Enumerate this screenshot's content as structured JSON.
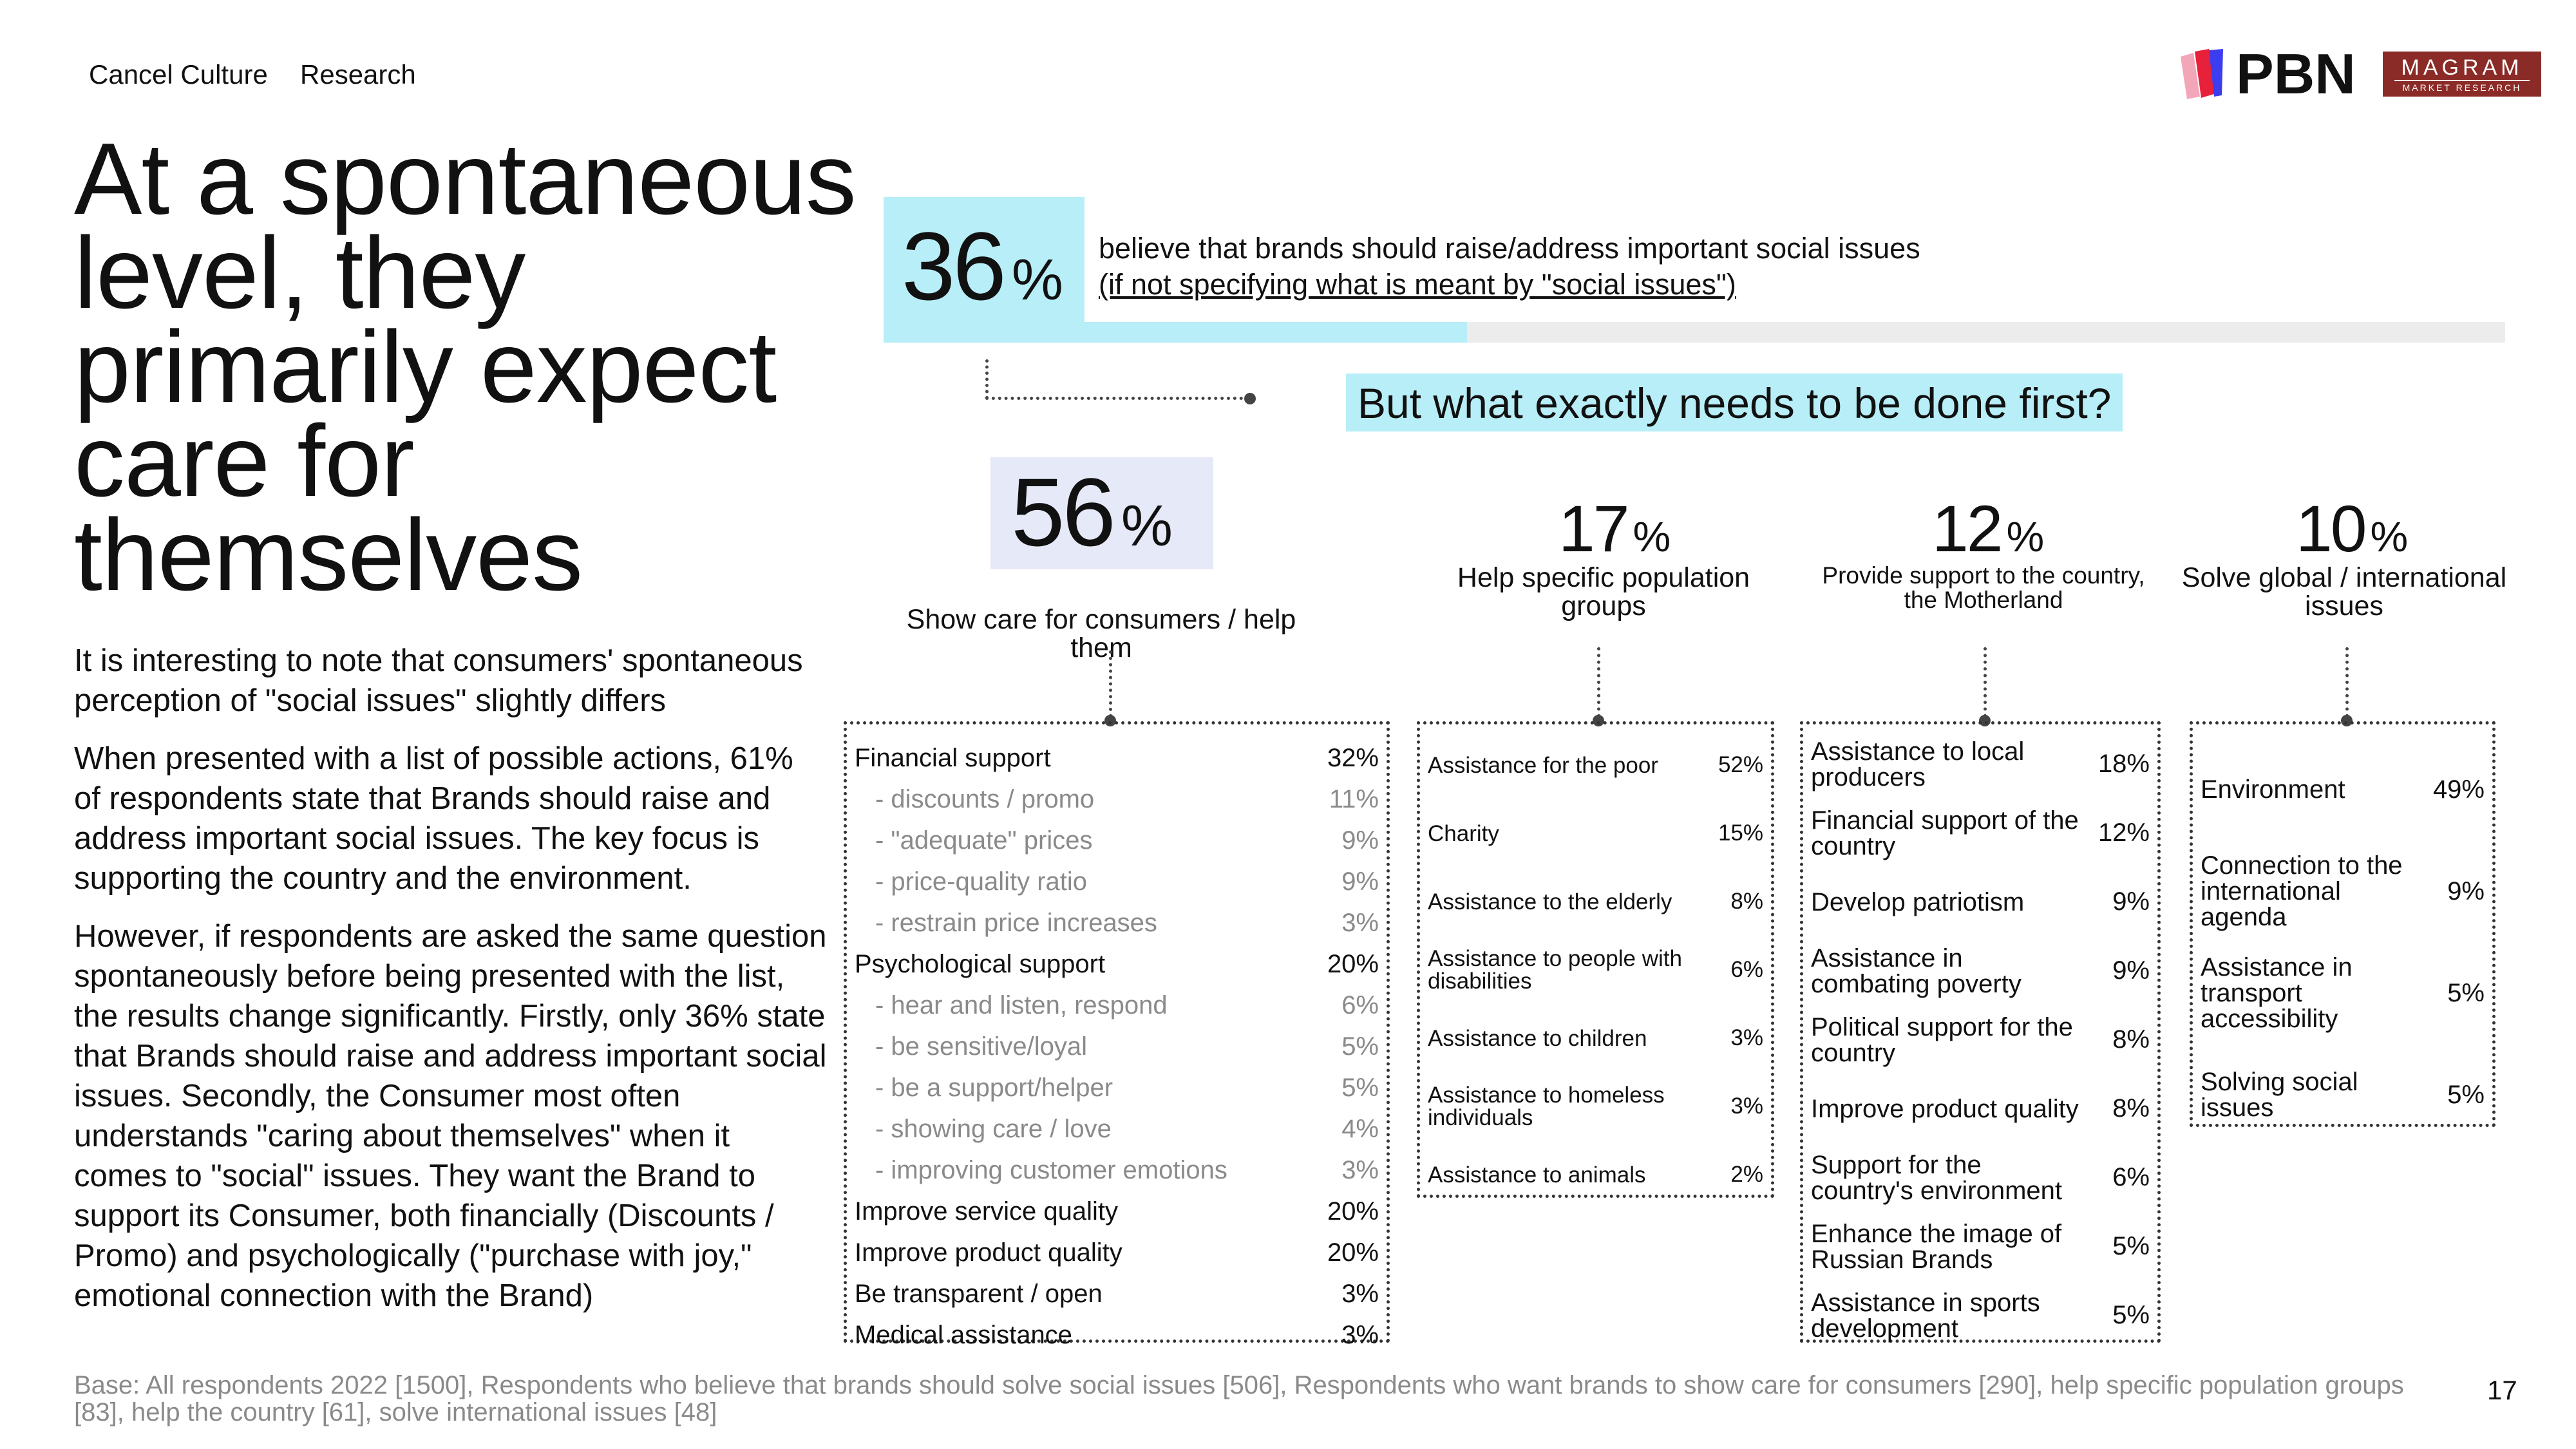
{
  "header": {
    "nav": [
      "Cancel Culture",
      "Research"
    ],
    "logos": {
      "pbn": "PBN",
      "magram_line1": "MAGRAM",
      "magram_line2": "MARKET RESEARCH",
      "pbn_icon": "pbn-logo-icon"
    }
  },
  "title": "At a spontaneous level, they primarily expect care for themselves",
  "body": {
    "paragraphs": [
      "It is interesting to note that consumers' spontaneous perception of \"social issues\" slightly differs",
      "When presented with a list of possible actions, 61% of respondents state that Brands should raise and address important social issues. The key focus is supporting the country and the environment.",
      "However, if respondents are asked the same question spontaneously before being presented with the list, the results change significantly. Firstly, only 36% state that Brands should raise and address important social issues. Secondly, the Consumer most often understands \"caring about themselves\" when it comes to \"social\" issues. They want the Brand to support its Consumer, both financially (Discounts / Promo) and psychologically (\"purchase with joy,\" emotional connection with the Brand)"
    ]
  },
  "headline_stat": {
    "value": "36",
    "unit": "%",
    "line1": "believe that brands should raise/address important social issues",
    "line2": "(if not specifying what is meant by \"social issues\")",
    "bar_fill_fraction": 0.36
  },
  "question": "But what exactly needs to be done first?",
  "colors": {
    "cyan": "#b8eef7",
    "lavender": "#e6e9f7",
    "bar_track": "#ececec",
    "muted": "#8a8a8a",
    "magram": "#8b2b27"
  },
  "categories": [
    {
      "value": "56",
      "unit": "%",
      "label": "Show care for consumers / help them",
      "items": [
        {
          "label": "Financial support",
          "value": "32%"
        },
        {
          "label": "- discounts / promo",
          "value": "11%",
          "sub": true
        },
        {
          "label": "- \"adequate\" prices",
          "value": "9%",
          "sub": true
        },
        {
          "label": "- price-quality ratio",
          "value": "9%",
          "sub": true
        },
        {
          "label": "- restrain price increases",
          "value": "3%",
          "sub": true
        },
        {
          "label": "Psychological support",
          "value": "20%"
        },
        {
          "label": "- hear and listen, respond",
          "value": "6%",
          "sub": true
        },
        {
          "label": "- be sensitive/loyal",
          "value": "5%",
          "sub": true
        },
        {
          "label": "- be a support/helper",
          "value": "5%",
          "sub": true
        },
        {
          "label": "- showing care / love",
          "value": "4%",
          "sub": true
        },
        {
          "label": "- improving customer emotions",
          "value": "3%",
          "sub": true
        },
        {
          "label": "Improve service quality",
          "value": "20%"
        },
        {
          "label": "Improve product quality",
          "value": "20%"
        },
        {
          "label": "Be transparent / open",
          "value": "3%"
        },
        {
          "label": "Medical assistance",
          "value": "3%"
        }
      ]
    },
    {
      "value": "17",
      "unit": "%",
      "label": "Help specific population groups",
      "items": [
        {
          "label": "Assistance for the poor",
          "value": "52%"
        },
        {
          "label": "Charity",
          "value": "15%"
        },
        {
          "label": "Assistance to the elderly",
          "value": "8%"
        },
        {
          "label": "Assistance to people with disabilities",
          "value": "6%"
        },
        {
          "label": "Assistance to children",
          "value": "3%"
        },
        {
          "label": "Assistance to homeless individuals",
          "value": "3%"
        },
        {
          "label": "Assistance to animals",
          "value": "2%"
        }
      ]
    },
    {
      "value": "12",
      "unit": "%",
      "label": "Provide support to the country, the Motherland",
      "items": [
        {
          "label": "Assistance to local producers",
          "value": "18%"
        },
        {
          "label": "Financial support of the country",
          "value": "12%"
        },
        {
          "label": "Develop patriotism",
          "value": "9%"
        },
        {
          "label": "Assistance in combating poverty",
          "value": "9%"
        },
        {
          "label": "Political support for the country",
          "value": "8%"
        },
        {
          "label": "Improve product quality",
          "value": "8%"
        },
        {
          "label": "Support for the country's environment",
          "value": "6%"
        },
        {
          "label": "Enhance the image of Russian Brands",
          "value": "5%"
        },
        {
          "label": "Assistance in sports development",
          "value": "5%"
        }
      ]
    },
    {
      "value": "10",
      "unit": "%",
      "label": "Solve global / international issues",
      "items": [
        {
          "label": "Environment",
          "value": "49%"
        },
        {
          "label": "Connection to the international agenda",
          "value": "9%"
        },
        {
          "label": "Assistance in transport accessibility",
          "value": "5%"
        },
        {
          "label": "Solving social issues",
          "value": "5%"
        }
      ]
    }
  ],
  "footer": {
    "base": "Base: All respondents 2022 [1500], Respondents who believe that brands should solve social issues [506], Respondents who want brands to show care for consumers [290], help specific population groups [83], help the country [61], solve international issues [48]",
    "page_number": "17"
  }
}
